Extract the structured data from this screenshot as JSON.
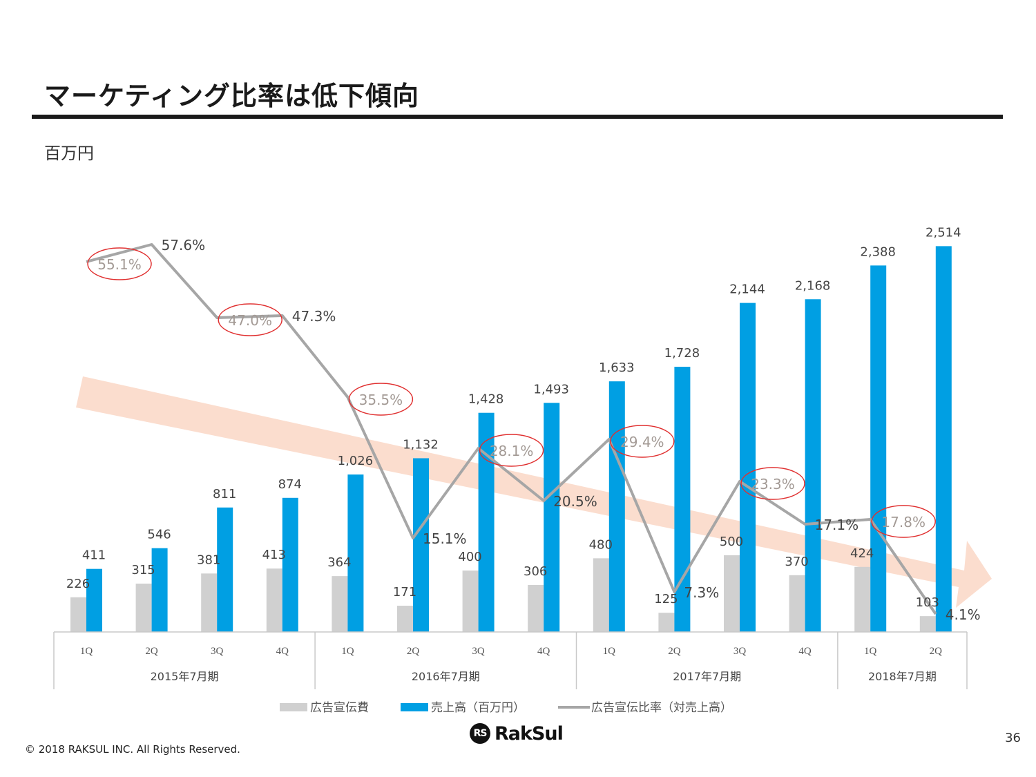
{
  "page": {
    "title": "マーケティング比率は低下傾向",
    "unit": "百万円",
    "copyright": "© 2018 RAKSUL INC. All Rights Reserved.",
    "page_number": "36",
    "logo_text": "RakSul"
  },
  "chart_data": {
    "type": "bar",
    "categories": [
      "1Q",
      "2Q",
      "3Q",
      "4Q",
      "1Q",
      "2Q",
      "3Q",
      "4Q",
      "1Q",
      "2Q",
      "3Q",
      "4Q",
      "1Q",
      "2Q"
    ],
    "groups": [
      {
        "label": "2015年7月期",
        "count": 4
      },
      {
        "label": "2016年7月期",
        "count": 4
      },
      {
        "label": "2017年7月期",
        "count": 4
      },
      {
        "label": "2018年7月期",
        "count": 2
      }
    ],
    "series": [
      {
        "name": "広告宣伝費",
        "type": "bar",
        "color": "#d0d0d0",
        "values": [
          226,
          315,
          381,
          413,
          364,
          171,
          400,
          306,
          480,
          125,
          500,
          370,
          424,
          103
        ],
        "labels": [
          "226",
          "315",
          "381",
          "413",
          "364",
          "171",
          "400",
          "306",
          "480",
          "125",
          "500",
          "370",
          "424",
          "103"
        ]
      },
      {
        "name": "売上高（百万円）",
        "type": "bar",
        "color": "#009fe3",
        "values": [
          411,
          546,
          811,
          874,
          1026,
          1132,
          1428,
          1493,
          1633,
          1728,
          2144,
          2168,
          2388,
          2514
        ],
        "labels": [
          "411",
          "546",
          "811",
          "874",
          "1,026",
          "1,132",
          "1,428",
          "1,493",
          "1,633",
          "1,728",
          "2,144",
          "2,168",
          "2,388",
          "2,514"
        ]
      },
      {
        "name": "広告宣伝比率（対売上高）",
        "type": "line",
        "color": "#a6a6a6",
        "values": [
          55.1,
          57.6,
          47.0,
          47.3,
          35.5,
          15.1,
          28.1,
          20.5,
          29.4,
          7.3,
          23.3,
          17.1,
          17.8,
          4.1
        ],
        "labels": [
          "55.1%",
          "57.6%",
          "47.0%",
          "47.3%",
          "35.5%",
          "15.1%",
          "28.1%",
          "20.5%",
          "29.4%",
          "7.3%",
          "23.3%",
          "17.1%",
          "17.8%",
          "4.1%"
        ]
      }
    ],
    "highlighted_points": [
      0,
      2,
      4,
      6,
      8,
      10,
      12
    ],
    "highlight_color": "#e03030",
    "trend_arrow_color": "#fbd9c9"
  }
}
